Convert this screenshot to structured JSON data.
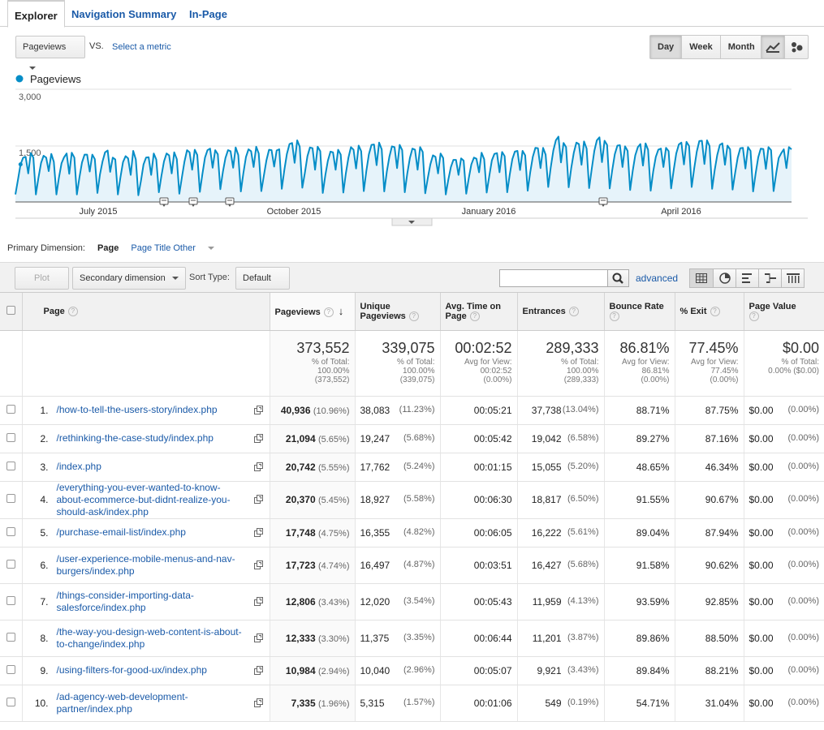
{
  "tabs": [
    "Explorer",
    "Navigation Summary",
    "In-Page"
  ],
  "metric": {
    "selected": "Pageviews",
    "vs": "VS.",
    "select_metric": "Select a metric"
  },
  "period_buttons": [
    "Day",
    "Week",
    "Month"
  ],
  "period_active": "Day",
  "chart_data": {
    "type": "line",
    "legend": [
      "Pageviews"
    ],
    "series_color": "#058dc7",
    "y_ticks": [
      "3,000",
      "1,500"
    ],
    "ylim": [
      0,
      3000
    ],
    "x_labels": [
      "July 2015",
      "October 2015",
      "January 2016",
      "April 2016"
    ],
    "values": [
      200,
      600,
      1000,
      1180,
      1200,
      760,
      1300,
      1180,
      200,
      650,
      1040,
      1230,
      1180,
      820,
      1280,
      1070,
      200,
      650,
      1030,
      1190,
      1290,
      750,
      1310,
      1180,
      200,
      660,
      1050,
      1260,
      1260,
      810,
      1260,
      1140,
      240,
      730,
      1080,
      1320,
      1370,
      800,
      1180,
      1130,
      200,
      660,
      1060,
      1220,
      1160,
      720,
      1360,
      1130,
      180,
      560,
      1000,
      1180,
      1190,
      720,
      1290,
      1130,
      260,
      690,
      1080,
      1290,
      1240,
      760,
      1320,
      1140,
      220,
      660,
      1070,
      1380,
      1320,
      860,
      1390,
      1250,
      270,
      740,
      1180,
      1380,
      1420,
      910,
      1380,
      1270,
      340,
      810,
      1170,
      1380,
      1350,
      910,
      1450,
      1250,
      280,
      770,
      1200,
      1400,
      1350,
      930,
      1470,
      1290,
      290,
      700,
      1110,
      1390,
      1380,
      940,
      1370,
      1400,
      350,
      860,
      1280,
      1540,
      1570,
      1040,
      1640,
      1470,
      380,
      770,
      1220,
      1450,
      1430,
      860,
      1470,
      1350,
      240,
      720,
      1100,
      1340,
      1320,
      860,
      1390,
      1260,
      250,
      760,
      1180,
      1460,
      1390,
      890,
      1500,
      1350,
      290,
      830,
      1270,
      1520,
      1530,
      980,
      1580,
      1400,
      280,
      810,
      1200,
      1480,
      1460,
      900,
      1520,
      1380,
      260,
      760,
      1170,
      1420,
      1390,
      860,
      1460,
      1330,
      230,
      640,
      1000,
      1240,
      1200,
      760,
      1290,
      1170,
      200,
      590,
      930,
      1120,
      1120,
      720,
      1160,
      1100,
      220,
      640,
      1000,
      1180,
      1150,
      790,
      1310,
      1140,
      250,
      690,
      1110,
      1280,
      1300,
      790,
      1330,
      1220,
      260,
      730,
      1140,
      1340,
      1360,
      850,
      1360,
      1240,
      300,
      800,
      1200,
      1440,
      1430,
      900,
      1440,
      1260,
      400,
      920,
      1370,
      1640,
      1740,
      1050,
      1570,
      1460,
      390,
      910,
      1310,
      1580,
      1540,
      990,
      1610,
      1420,
      370,
      880,
      1360,
      1640,
      1720,
      1060,
      1630,
      1520,
      360,
      840,
      1270,
      1500,
      1510,
      930,
      1480,
      1360,
      320,
      830,
      1240,
      1460,
      1540,
      970,
      1560,
      1390,
      300,
      810,
      1200,
      1390,
      1420,
      930,
      1440,
      1350,
      360,
      860,
      1290,
      1530,
      1580,
      1000,
      1600,
      1490,
      400,
      890,
      1340,
      1620,
      1630,
      1010,
      1640,
      1490,
      350,
      840,
      1250,
      1520,
      1560,
      990,
      1500,
      1400,
      330,
      780,
      1180,
      1430,
      1440,
      890,
      1460,
      1360,
      280,
      760,
      1190,
      1420,
      1410,
      880,
      1460,
      1380,
      290,
      760,
      1170,
      1300,
      1400,
      900,
      1460,
      1400
    ]
  },
  "primary_dimension": {
    "label": "Primary Dimension:",
    "options": [
      "Page",
      "Page Title",
      "Other"
    ],
    "active": "Page"
  },
  "toolbar": {
    "plot_rows": "Plot Rows",
    "secondary": "Secondary dimension",
    "sort_label": "Sort Type:",
    "sort_value": "Default",
    "advanced": "advanced"
  },
  "columns": [
    "Page",
    "Pageviews",
    "Unique Pageviews",
    "Avg. Time on Page",
    "Entrances",
    "Bounce Rate",
    "% Exit",
    "Page Value"
  ],
  "totals": [
    {
      "big": "373,552",
      "sub": [
        "% of Total:",
        "100.00%",
        "(373,552)"
      ]
    },
    {
      "big": "339,075",
      "sub": [
        "% of Total:",
        "100.00%",
        "(339,075)"
      ]
    },
    {
      "big": "00:02:52",
      "sub": [
        "Avg for View:",
        "00:02:52",
        "(0.00%)"
      ]
    },
    {
      "big": "289,333",
      "sub": [
        "% of Total:",
        "100.00%",
        "(289,333)"
      ]
    },
    {
      "big": "86.81%",
      "sub": [
        "Avg for View:",
        "86.81%",
        "(0.00%)"
      ]
    },
    {
      "big": "77.45%",
      "sub": [
        "Avg for View:",
        "77.45%",
        "(0.00%)"
      ]
    },
    {
      "big": "$0.00",
      "sub": [
        "% of Total:",
        "0.00% ($0.00)"
      ]
    }
  ],
  "rows": [
    {
      "n": "1.",
      "page": "/how-to-tell-the-users-story/index.php",
      "pv": "40,936",
      "pvp": "(10.96%)",
      "upv": "38,083",
      "upvp": "(11.23%)",
      "time": "00:05:21",
      "ent": "37,738",
      "entp": "(13.04%)",
      "br": "88.71%",
      "exit": "87.75%",
      "val": "$0.00",
      "valp": "(0.00%)"
    },
    {
      "n": "2.",
      "page": "/rethinking-the-case-study/index.php",
      "pv": "21,094",
      "pvp": "(5.65%)",
      "upv": "19,247",
      "upvp": "(5.68%)",
      "time": "00:05:42",
      "ent": "19,042",
      "entp": "(6.58%)",
      "br": "89.27%",
      "exit": "87.16%",
      "val": "$0.00",
      "valp": "(0.00%)"
    },
    {
      "n": "3.",
      "page": "/index.php",
      "pv": "20,742",
      "pvp": "(5.55%)",
      "upv": "17,762",
      "upvp": "(5.24%)",
      "time": "00:01:15",
      "ent": "15,055",
      "entp": "(5.20%)",
      "br": "48.65%",
      "exit": "46.34%",
      "val": "$0.00",
      "valp": "(0.00%)"
    },
    {
      "n": "4.",
      "page": "/everything-you-ever-wanted-to-know-about-ecommerce-but-didnt-realize-you-should-ask/index.php",
      "pv": "20,370",
      "pvp": "(5.45%)",
      "upv": "18,927",
      "upvp": "(5.58%)",
      "time": "00:06:30",
      "ent": "18,817",
      "entp": "(6.50%)",
      "br": "91.55%",
      "exit": "90.67%",
      "val": "$0.00",
      "valp": "(0.00%)"
    },
    {
      "n": "5.",
      "page": "/purchase-email-list/index.php",
      "pv": "17,748",
      "pvp": "(4.75%)",
      "upv": "16,355",
      "upvp": "(4.82%)",
      "time": "00:06:05",
      "ent": "16,222",
      "entp": "(5.61%)",
      "br": "89.04%",
      "exit": "87.94%",
      "val": "$0.00",
      "valp": "(0.00%)"
    },
    {
      "n": "6.",
      "page": "/user-experience-mobile-menus-and-nav-burgers/index.php",
      "pv": "17,723",
      "pvp": "(4.74%)",
      "upv": "16,497",
      "upvp": "(4.87%)",
      "time": "00:03:51",
      "ent": "16,427",
      "entp": "(5.68%)",
      "br": "91.58%",
      "exit": "90.62%",
      "val": "$0.00",
      "valp": "(0.00%)"
    },
    {
      "n": "7.",
      "page": "/things-consider-importing-data-salesforce/index.php",
      "pv": "12,806",
      "pvp": "(3.43%)",
      "upv": "12,020",
      "upvp": "(3.54%)",
      "time": "00:05:43",
      "ent": "11,959",
      "entp": "(4.13%)",
      "br": "93.59%",
      "exit": "92.85%",
      "val": "$0.00",
      "valp": "(0.00%)"
    },
    {
      "n": "8.",
      "page": "/the-way-you-design-web-content-is-about-to-change/index.php",
      "pv": "12,333",
      "pvp": "(3.30%)",
      "upv": "11,375",
      "upvp": "(3.35%)",
      "time": "00:06:44",
      "ent": "11,201",
      "entp": "(3.87%)",
      "br": "89.86%",
      "exit": "88.50%",
      "val": "$0.00",
      "valp": "(0.00%)"
    },
    {
      "n": "9.",
      "page": "/using-filters-for-good-ux/index.php",
      "pv": "10,984",
      "pvp": "(2.94%)",
      "upv": "10,040",
      "upvp": "(2.96%)",
      "time": "00:05:07",
      "ent": "9,921",
      "entp": "(3.43%)",
      "br": "89.84%",
      "exit": "88.21%",
      "val": "$0.00",
      "valp": "(0.00%)"
    },
    {
      "n": "10.",
      "page": "/ad-agency-web-development-partner/index.php",
      "pv": "7,335",
      "pvp": "(1.96%)",
      "upv": "5,315",
      "upvp": "(1.57%)",
      "time": "00:01:06",
      "ent": "549",
      "entp": "(0.19%)",
      "br": "54.71%",
      "exit": "31.04%",
      "val": "$0.00",
      "valp": "(0.00%)"
    }
  ]
}
